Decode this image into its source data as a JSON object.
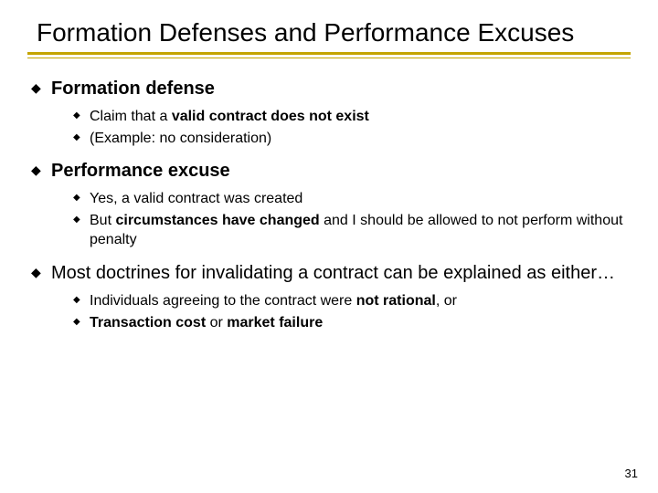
{
  "title": "Formation Defenses and Performance Excuses",
  "page_number": "31",
  "colors": {
    "underline": "#c4a400",
    "text": "#000000",
    "background": "#ffffff"
  },
  "typography": {
    "title_fontsize": 28,
    "l1_fontsize": 20,
    "l2_fontsize": 16,
    "pagenum_fontsize": 13,
    "font_family": "Arial"
  },
  "bullets": [
    {
      "head": "Formation defense",
      "body": "",
      "sub": [
        {
          "pre": "Claim that a ",
          "bold": "valid contract does not exist",
          "post": ""
        },
        {
          "pre": "(Example: no consideration)",
          "bold": "",
          "post": ""
        }
      ]
    },
    {
      "head": "Performance excuse",
      "body": "",
      "sub": [
        {
          "pre": "Yes, a valid contract was created",
          "bold": "",
          "post": ""
        },
        {
          "pre": "But ",
          "bold": "circumstances have changed",
          "post": " and I should be allowed to not perform without penalty"
        }
      ]
    },
    {
      "head": "",
      "body": "Most doctrines for invalidating a contract can be explained as either…",
      "sub": [
        {
          "pre": "Individuals agreeing to the contract were ",
          "bold": "not rational",
          "post": ", or"
        },
        {
          "pre": "",
          "bold": "Transaction cost",
          "post": " or ",
          "bold2": "market failure"
        }
      ]
    }
  ]
}
